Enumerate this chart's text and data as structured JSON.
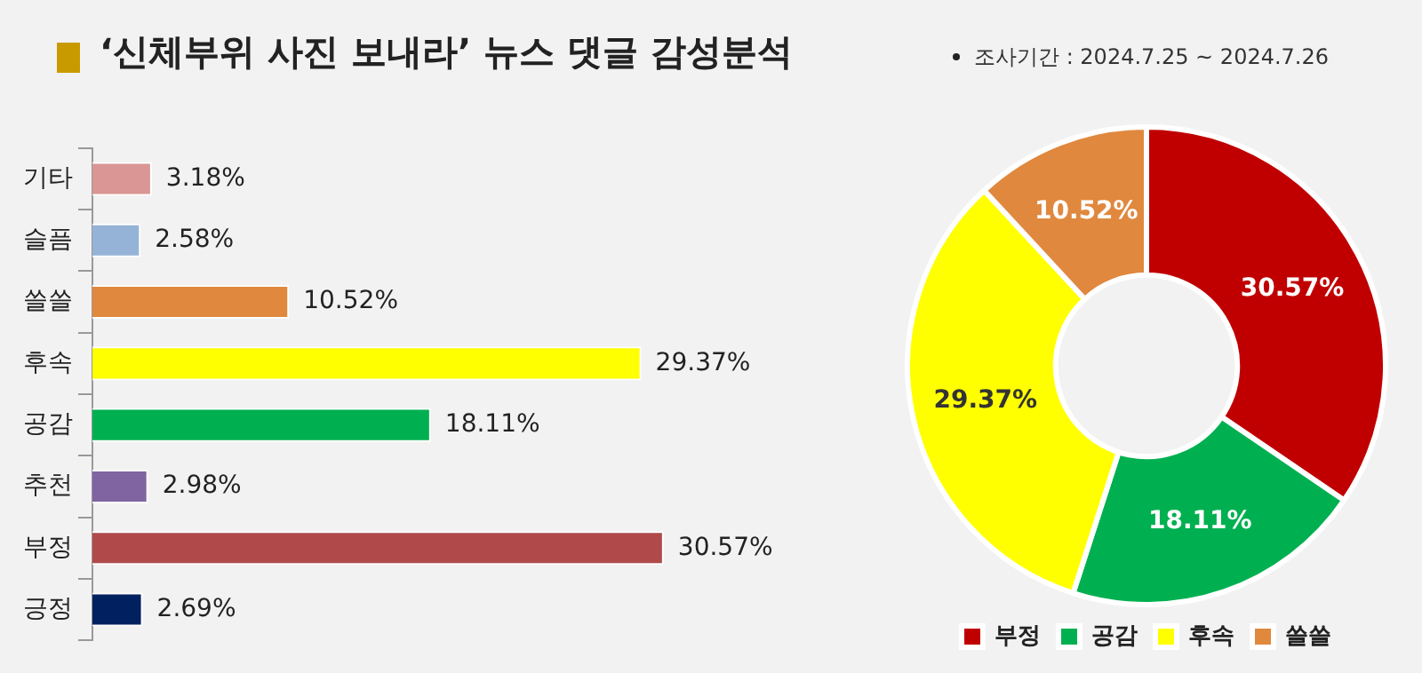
{
  "chart_data": [
    {
      "type": "bar",
      "orientation": "horizontal",
      "title": "‘신체부위 사진 보내라’ 뉴스 댓글 감성분석",
      "categories": [
        "기타",
        "슬픔",
        "쓸쓸",
        "후속",
        "공감",
        "추천",
        "부정",
        "긍정"
      ],
      "values": [
        3.18,
        2.58,
        10.52,
        29.37,
        18.11,
        2.98,
        30.57,
        2.69
      ],
      "value_labels": [
        "3.18%",
        "2.58%",
        "10.52%",
        "29.37%",
        "18.11%",
        "2.98%",
        "30.57%",
        "2.69%"
      ],
      "colors": [
        "#d99694",
        "#95b3d7",
        "#e0883e",
        "#ffff00",
        "#00b050",
        "#8064a2",
        "#b04a4a",
        "#002060"
      ],
      "tick_labels": "y",
      "grid": false,
      "legend": false
    },
    {
      "type": "donut",
      "annotations": [
        "조사기간 : 2024.7.25 ~ 2024.7.26"
      ],
      "categories": [
        "부정",
        "공감",
        "후속",
        "쓸쓸"
      ],
      "values": [
        30.57,
        18.11,
        29.37,
        10.52
      ],
      "value_labels": [
        "30.57%",
        "18.11%",
        "29.37%",
        "10.52%"
      ],
      "colors": [
        "#c00000",
        "#00b050",
        "#ffff00",
        "#e0883e"
      ],
      "legend": "bottom"
    }
  ]
}
